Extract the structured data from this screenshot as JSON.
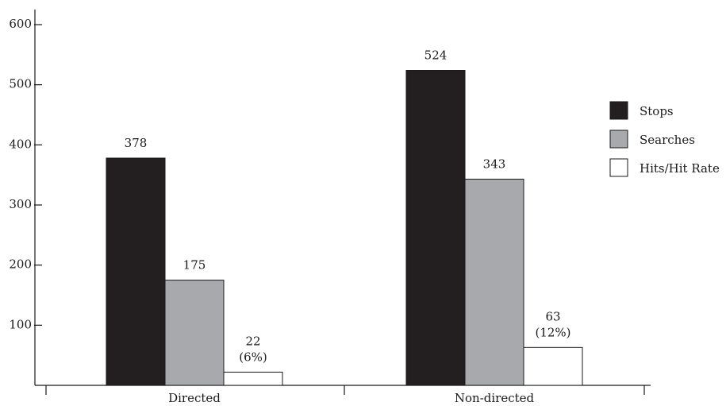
{
  "chart_data": {
    "type": "bar",
    "categories": [
      "Directed",
      "Non-directed"
    ],
    "series": [
      {
        "name": "Stops",
        "color": "#231f20",
        "values": [
          378,
          524
        ],
        "labels": [
          [
            "378"
          ],
          [
            "524"
          ]
        ]
      },
      {
        "name": "Searches",
        "color": "#a7a9ac",
        "values": [
          175,
          343
        ],
        "labels": [
          [
            "175"
          ],
          [
            "343"
          ]
        ]
      },
      {
        "name": "Hits/Hit Rate",
        "color": "#ffffff",
        "values": [
          22,
          63
        ],
        "labels": [
          [
            "22",
            "(6%)"
          ],
          [
            "63",
            "(12%)"
          ]
        ]
      }
    ],
    "yticks": [
      100,
      200,
      300,
      400,
      500,
      600
    ],
    "ylim": [
      0,
      600
    ],
    "xlabel": "",
    "ylabel": "",
    "title": "",
    "legend_position": "right",
    "grid": false
  }
}
